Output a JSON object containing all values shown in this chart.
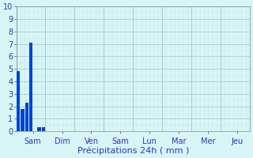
{
  "bar_heights": [
    4.8,
    1.8,
    2.3,
    7.1,
    0.35,
    0.35
  ],
  "bar_positions": [
    0,
    1,
    2,
    3,
    5,
    6
  ],
  "bar_color": "#0044cc",
  "bar_width": 0.85,
  "n_total_slots": 56,
  "day_labels": [
    "Sam",
    "Dim",
    "Ven",
    "Sam",
    "Lun",
    "Mar",
    "Mer",
    "Jeu"
  ],
  "day_tick_positions": [
    3.5,
    10.5,
    17.5,
    24.5,
    31.5,
    38.5,
    45.5,
    52.5
  ],
  "day_separator_positions": [
    0,
    7,
    14,
    21,
    28,
    35,
    42,
    49,
    56
  ],
  "ylim": [
    0,
    10
  ],
  "yticks": [
    0,
    1,
    2,
    3,
    4,
    5,
    6,
    7,
    8,
    9,
    10
  ],
  "xlabel": "Précipitations 24h ( mm )",
  "xlabel_fontsize": 8,
  "background_color": "#d8f5f5",
  "grid_major_color": "#aacece",
  "grid_minor_color": "#c8eaea",
  "tick_color": "#3333bb",
  "label_color": "#3333bb",
  "ytick_fontsize": 7,
  "xtick_fontsize": 7
}
